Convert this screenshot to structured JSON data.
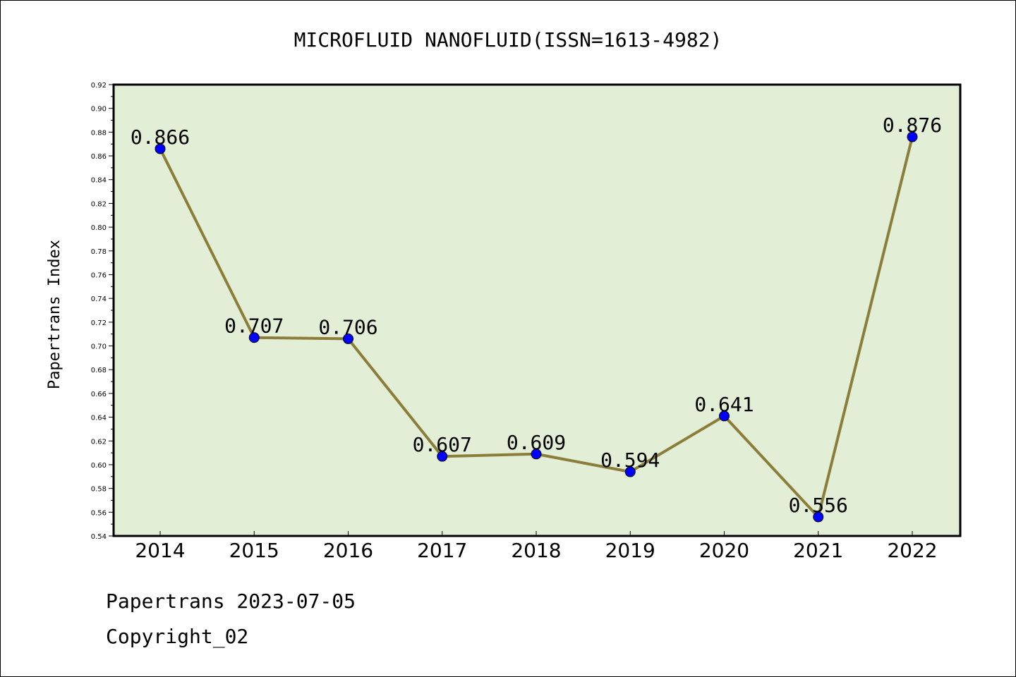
{
  "chart_data": {
    "type": "line",
    "title": "MICROFLUID NANOFLUID(ISSN=1613-4982)",
    "xlabel": "",
    "ylabel": "Papertrans Index",
    "categories": [
      "2014",
      "2015",
      "2016",
      "2017",
      "2018",
      "2019",
      "2020",
      "2021",
      "2022"
    ],
    "series": [
      {
        "values": [
          0.866,
          0.707,
          0.706,
          0.607,
          0.609,
          0.594,
          0.641,
          0.556,
          0.876
        ],
        "data_labels": [
          "0.866",
          "0.707",
          "0.706",
          "0.607",
          "0.609",
          "0.594",
          "0.641",
          "0.556",
          "0.876"
        ]
      }
    ],
    "ylim": [
      0.54,
      0.92
    ],
    "yticks": [
      "0.54",
      "0.56",
      "0.58",
      "0.60",
      "0.62",
      "0.64",
      "0.66",
      "0.68",
      "0.70",
      "0.72",
      "0.74",
      "0.76",
      "0.78",
      "0.80",
      "0.82",
      "0.84",
      "0.86",
      "0.88",
      "0.90",
      "0.92"
    ],
    "grid": false,
    "plot_background": "#e2efd6",
    "line_color": "#8b7d3a",
    "marker_color": "#0000ff"
  },
  "footer": {
    "line1": "Papertrans 2023-07-05",
    "line2": "Copyright_02"
  }
}
